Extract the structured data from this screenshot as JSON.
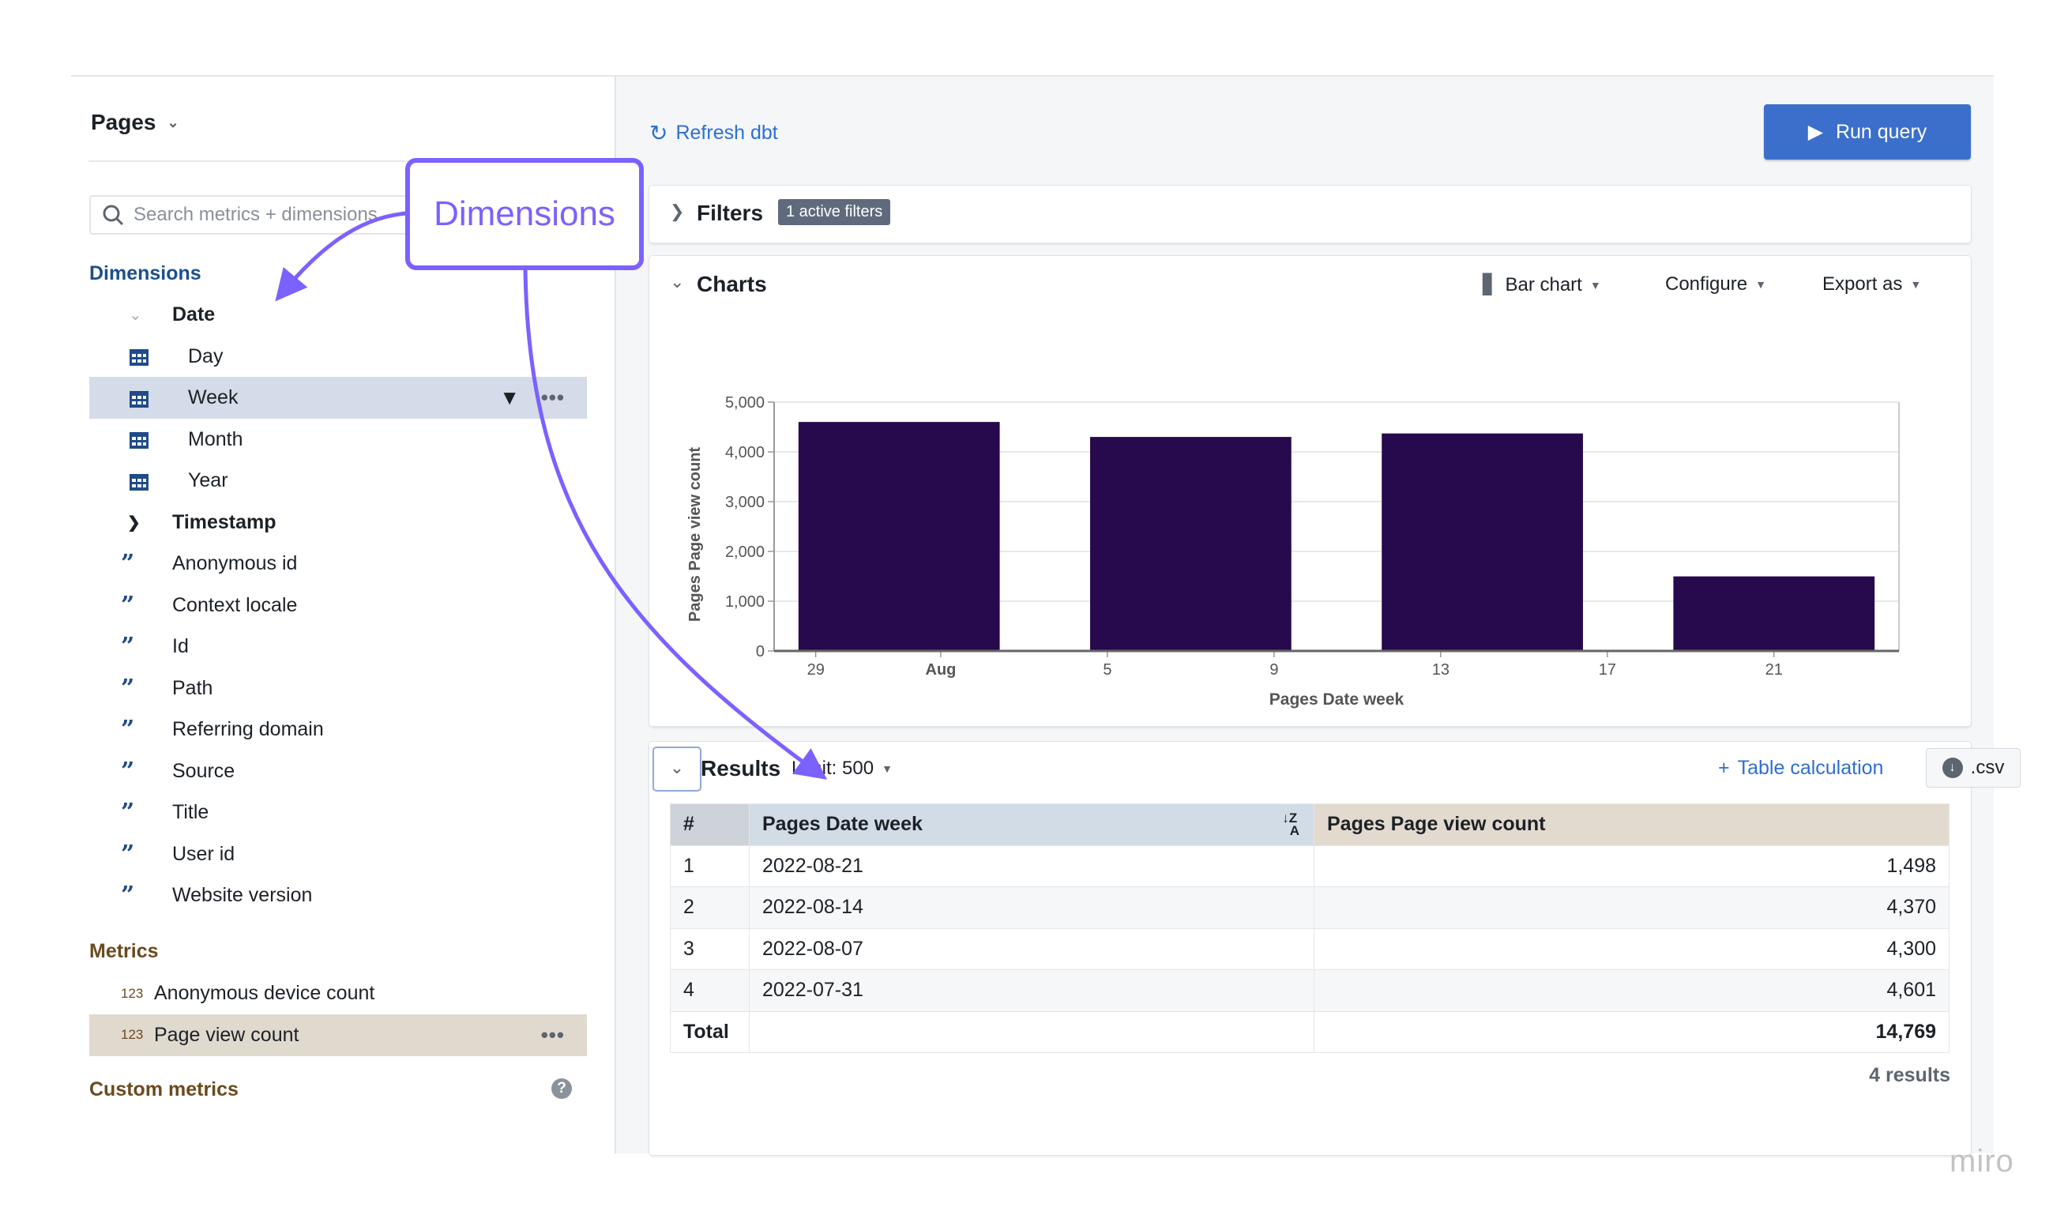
{
  "sidebar": {
    "explore_title": "Pages",
    "search_placeholder": "Search metrics + dimensions",
    "dimensions_heading": "Dimensions",
    "date_group": "Date",
    "date_items": [
      {
        "label": "Day"
      },
      {
        "label": "Week",
        "selected": true
      },
      {
        "label": "Month"
      },
      {
        "label": "Year"
      }
    ],
    "timestamp_group": "Timestamp",
    "string_dims": [
      "Anonymous id",
      "Context locale",
      "Id",
      "Path",
      "Referring domain",
      "Source",
      "Title",
      "User id",
      "Website version"
    ],
    "metrics_heading": "Metrics",
    "metric_icon_text": "123",
    "metrics": [
      {
        "label": "Anonymous device count"
      },
      {
        "label": "Page view count",
        "selected": true
      }
    ],
    "custom_metrics_heading": "Custom metrics",
    "more_glyph": "•••"
  },
  "toolbar": {
    "refresh_label": "Refresh dbt",
    "run_label": "Run query"
  },
  "filters": {
    "title": "Filters",
    "badge": "1 active filters"
  },
  "charts": {
    "title": "Charts",
    "chart_type": "Bar chart",
    "configure": "Configure",
    "export": "Export as"
  },
  "chart_data": {
    "type": "bar",
    "xlabel": "Pages Date week",
    "ylabel": "Pages Page view count",
    "x": [
      "2022-07-31",
      "2022-08-07",
      "2022-08-14",
      "2022-08-21"
    ],
    "values": [
      4601,
      4300,
      4370,
      1498
    ],
    "ylim": [
      0,
      5000
    ],
    "yticks": [
      0,
      1000,
      2000,
      3000,
      4000,
      5000
    ],
    "ytick_labels": [
      "0",
      "1,000",
      "2,000",
      "3,000",
      "4,000",
      "5,000"
    ],
    "xlim": [
      "2022-07-28",
      "2022-08-24"
    ],
    "xticks": [
      "2022-07-29",
      "2022-08-01",
      "2022-08-05",
      "2022-08-09",
      "2022-08-13",
      "2022-08-17",
      "2022-08-21"
    ],
    "xtick_labels": [
      "29",
      "Aug",
      "5",
      "9",
      "13",
      "17",
      "21"
    ],
    "grid": true,
    "bar_color": "#27094d"
  },
  "results": {
    "title": "Results",
    "limit": "Limit: 500",
    "table_calc": "Table calculation",
    "csv": ".csv",
    "columns": [
      "#",
      "Pages Date week",
      "Pages Page view count"
    ],
    "rows": [
      [
        "1",
        "2022-08-21",
        "1,498"
      ],
      [
        "2",
        "2022-08-14",
        "4,370"
      ],
      [
        "3",
        "2022-08-07",
        "4,300"
      ],
      [
        "4",
        "2022-07-31",
        "4,601"
      ]
    ],
    "total_label": "Total",
    "total_value": "14,769",
    "count": "4 results"
  },
  "annotation": {
    "callout": "Dimensions",
    "color": "#7b61ff"
  },
  "watermark": "miro"
}
